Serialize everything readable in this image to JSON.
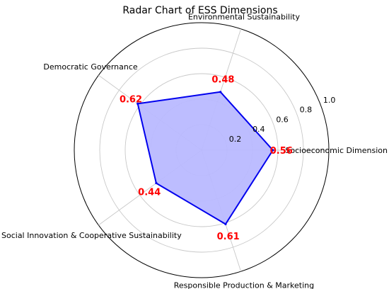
{
  "chart_data": {
    "type": "radar",
    "title": "Radar Chart of ESS Dimensions",
    "categories": [
      "Socioeconomic Dimension",
      "Environmental Sustainability",
      "Democratic Governance",
      "Social Innovation & Cooperative Sustainability",
      "Responsible Production & Marketing"
    ],
    "values": [
      0.56,
      0.48,
      0.62,
      0.44,
      0.61
    ],
    "value_labels": [
      "0.56",
      "0.48",
      "0.62",
      "0.44",
      "0.61"
    ],
    "radial_ticks": [
      0.2,
      0.4,
      0.6,
      0.8,
      1.0
    ],
    "radial_tick_labels": [
      "0.2",
      "0.4",
      "0.6",
      "0.8",
      "1.0"
    ],
    "rlim": [
      0,
      1.0
    ],
    "grid": true,
    "legend": "none",
    "colors": {
      "line": "#0000ee",
      "fill": "#b9b9ff",
      "value_label": "#ff0000",
      "grid": "#c8c8c8",
      "outer_ring": "#000000"
    }
  }
}
